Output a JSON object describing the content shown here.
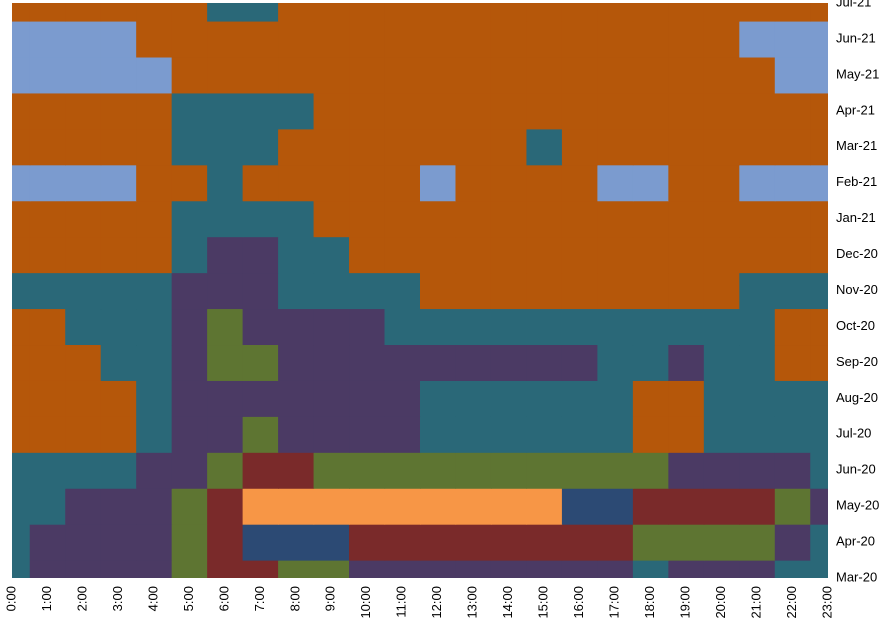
{
  "chart_data": {
    "type": "contour",
    "x": [
      "0:00",
      "1:00",
      "2:00",
      "3:00",
      "4:00",
      "5:00",
      "6:00",
      "7:00",
      "8:00",
      "9:00",
      "10:00",
      "11:00",
      "12:00",
      "13:00",
      "14:00",
      "15:00",
      "16:00",
      "17:00",
      "18:00",
      "19:00",
      "20:00",
      "21:00",
      "22:00",
      "23:00"
    ],
    "y": [
      "Mar-20",
      "Apr-20",
      "May-20",
      "Jun-20",
      "Jul-20",
      "Aug-20",
      "Sep-20",
      "Oct-20",
      "Nov-20",
      "Dec-20",
      "Jan-21",
      "Feb-21",
      "Mar-21",
      "Apr-21",
      "May-21",
      "Jun-21",
      "Jul-21"
    ],
    "colors": [
      "#7b9bcf",
      "#b5570a",
      "#2a6878",
      "#4b3a64",
      "#5e7532",
      "#7a2a2a",
      "#2c4a74",
      "#f79646"
    ],
    "z": [
      [
        2,
        3,
        3,
        3,
        3,
        4,
        5,
        5,
        4,
        4,
        3,
        3,
        3,
        3,
        3,
        3,
        3,
        3,
        2,
        3,
        3,
        3,
        2,
        2
      ],
      [
        2,
        3,
        3,
        3,
        3,
        4,
        5,
        6,
        6,
        6,
        5,
        5,
        5,
        5,
        5,
        5,
        5,
        5,
        4,
        4,
        4,
        4,
        3,
        2
      ],
      [
        2,
        2,
        3,
        3,
        3,
        4,
        5,
        7,
        7,
        7,
        7,
        7,
        7,
        7,
        7,
        7,
        6,
        6,
        5,
        5,
        5,
        5,
        4,
        3
      ],
      [
        2,
        2,
        2,
        2,
        3,
        3,
        4,
        5,
        5,
        4,
        4,
        4,
        4,
        4,
        4,
        4,
        4,
        4,
        4,
        3,
        3,
        3,
        3,
        2
      ],
      [
        1,
        1,
        1,
        1,
        2,
        3,
        3,
        4,
        3,
        3,
        3,
        3,
        2,
        2,
        2,
        2,
        2,
        2,
        1,
        1,
        2,
        2,
        2,
        2
      ],
      [
        1,
        1,
        1,
        1,
        2,
        3,
        3,
        3,
        3,
        3,
        3,
        3,
        2,
        2,
        2,
        2,
        2,
        2,
        1,
        1,
        2,
        2,
        2,
        2
      ],
      [
        1,
        1,
        1,
        2,
        2,
        3,
        4,
        4,
        3,
        3,
        3,
        3,
        3,
        3,
        3,
        3,
        3,
        2,
        2,
        3,
        2,
        2,
        1,
        1
      ],
      [
        1,
        1,
        2,
        2,
        2,
        3,
        4,
        3,
        3,
        3,
        3,
        2,
        2,
        2,
        2,
        2,
        2,
        2,
        2,
        2,
        2,
        2,
        1,
        1
      ],
      [
        2,
        2,
        2,
        2,
        2,
        3,
        3,
        3,
        2,
        2,
        2,
        2,
        1,
        1,
        1,
        1,
        1,
        1,
        1,
        1,
        1,
        2,
        2,
        2
      ],
      [
        1,
        1,
        1,
        1,
        1,
        2,
        3,
        3,
        2,
        2,
        1,
        1,
        1,
        1,
        1,
        1,
        1,
        1,
        1,
        1,
        1,
        1,
        1,
        1
      ],
      [
        1,
        1,
        1,
        1,
        1,
        2,
        2,
        2,
        2,
        1,
        1,
        1,
        1,
        1,
        1,
        1,
        1,
        1,
        1,
        1,
        1,
        1,
        1,
        1
      ],
      [
        0,
        0,
        0,
        0,
        1,
        1,
        2,
        1,
        1,
        1,
        1,
        1,
        0,
        1,
        1,
        1,
        1,
        0,
        0,
        1,
        1,
        0,
        0,
        0
      ],
      [
        1,
        1,
        1,
        1,
        1,
        2,
        2,
        2,
        1,
        1,
        1,
        1,
        1,
        1,
        1,
        2,
        1,
        1,
        1,
        1,
        1,
        1,
        1,
        1
      ],
      [
        1,
        1,
        1,
        1,
        1,
        2,
        2,
        2,
        2,
        1,
        1,
        1,
        1,
        1,
        1,
        1,
        1,
        1,
        1,
        1,
        1,
        1,
        1,
        1
      ],
      [
        0,
        0,
        0,
        0,
        0,
        1,
        1,
        1,
        1,
        1,
        1,
        1,
        1,
        1,
        1,
        1,
        1,
        1,
        1,
        1,
        1,
        1,
        0,
        0
      ],
      [
        0,
        0,
        0,
        0,
        1,
        1,
        1,
        1,
        1,
        1,
        1,
        1,
        1,
        1,
        1,
        1,
        1,
        1,
        1,
        1,
        1,
        0,
        0,
        0
      ],
      [
        1,
        1,
        1,
        1,
        1,
        1,
        2,
        2,
        1,
        1,
        1,
        1,
        1,
        1,
        1,
        1,
        1,
        1,
        1,
        1,
        1,
        1,
        1,
        1
      ]
    ]
  }
}
